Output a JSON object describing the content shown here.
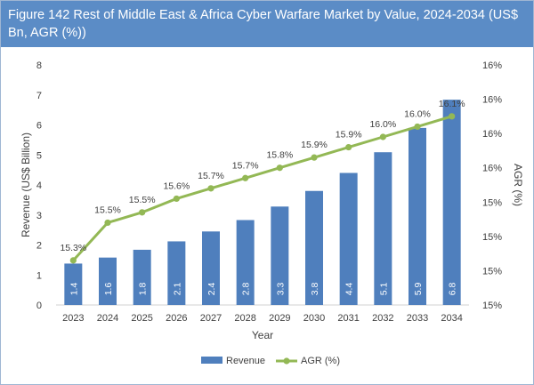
{
  "title": "Figure 142   Rest of Middle East & Africa Cyber Warfare Market by Value, 2024-2034 (US$ Bn, AGR (%))",
  "colors": {
    "header": "#5b8cc6",
    "bar": "#4f7fbd",
    "line": "#93b855"
  },
  "chart_data": {
    "type": "bar",
    "categories": [
      "2023",
      "2024",
      "2025",
      "2026",
      "2027",
      "2028",
      "2029",
      "2030",
      "2031",
      "2032",
      "2033",
      "2034"
    ],
    "series": [
      {
        "name": "Revenue",
        "type": "bar",
        "axis": "left",
        "values": [
          1.38,
          1.58,
          1.84,
          2.12,
          2.45,
          2.83,
          3.28,
          3.8,
          4.4,
          5.09,
          5.9,
          6.84
        ],
        "labels": [
          "1.4",
          "1.6",
          "1.8",
          "2.1",
          "2.4",
          "2.8",
          "3.3",
          "3.8",
          "4.4",
          "5.1",
          "5.9",
          "6.8"
        ]
      },
      {
        "name": "AGR (%)",
        "type": "line",
        "axis": "right",
        "values": [
          15.26,
          15.48,
          15.54,
          15.62,
          15.68,
          15.74,
          15.8,
          15.86,
          15.92,
          15.98,
          16.04,
          16.1
        ],
        "labels": [
          "15.3%",
          "15.5%",
          "15.5%",
          "15.6%",
          "15.7%",
          "15.7%",
          "15.8%",
          "15.9%",
          "15.9%",
          "16.0%",
          "16.0%",
          "16.1%"
        ]
      }
    ],
    "xlabel": "Year",
    "ylabel": "Revenue (US$ Billion)",
    "y2label": "AGR (%)",
    "ylim": [
      0,
      8
    ],
    "yticks": [
      "0",
      "1",
      "2",
      "3",
      "4",
      "5",
      "6",
      "7",
      "8"
    ],
    "y2lim": [
      15.0,
      16.4
    ],
    "y2ticks": [
      "15%",
      "15%",
      "15%",
      "15%",
      "16%",
      "16%",
      "16%",
      "16%"
    ],
    "grid": false,
    "legend_position": "bottom"
  }
}
